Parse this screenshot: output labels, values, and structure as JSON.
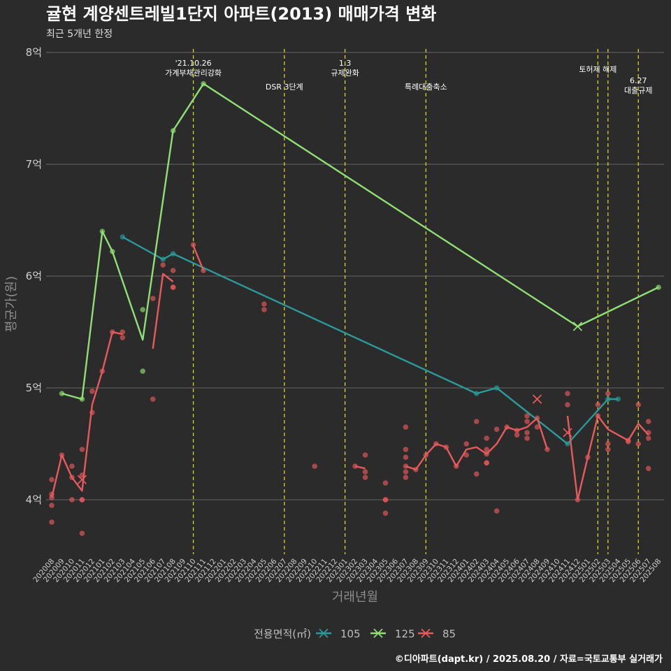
{
  "title": "귤현 계양센트레빌1단지 아파트(2013) 매매가격 변화",
  "subtitle": "최근 5개년 한정",
  "caption": "©디아파트(dapt.kr) / 2025.08.20 / 자료=국토교통부 실거래가",
  "legend": {
    "title": "전용면적(㎡)"
  },
  "colors": {
    "105": "#2a9a9a",
    "125": "#8fdf74",
    "85": "#e8595c",
    "event_line": "#d4d42a",
    "grid": "#6a6a6a"
  },
  "chart_data": {
    "type": "line",
    "xlabel": "거래년월",
    "ylabel": "평균가(원)",
    "ylim": [
      3.5,
      8.0
    ],
    "y_ticks": [
      {
        "v": 4,
        "label": "4억"
      },
      {
        "v": 5,
        "label": "5억"
      },
      {
        "v": 6,
        "label": "6억"
      },
      {
        "v": 7,
        "label": "7억"
      },
      {
        "v": 8,
        "label": "8억"
      }
    ],
    "categories": [
      "202008",
      "202009",
      "202010",
      "202011",
      "202012",
      "202101",
      "202102",
      "202103",
      "202104",
      "202105",
      "202106",
      "202107",
      "202108",
      "202109",
      "202110",
      "202111",
      "202112",
      "202201",
      "202202",
      "202203",
      "202204",
      "202205",
      "202206",
      "202207",
      "202208",
      "202209",
      "202210",
      "202211",
      "202212",
      "202301",
      "202302",
      "202303",
      "202304",
      "202305",
      "202306",
      "202307",
      "202308",
      "202309",
      "202310",
      "202311",
      "202312",
      "202401",
      "202402",
      "202403",
      "202404",
      "202405",
      "202406",
      "202407",
      "202408",
      "202409",
      "202410",
      "202411",
      "202412",
      "202501",
      "202502",
      "202503",
      "202504",
      "202505",
      "202506",
      "202507",
      "202508"
    ],
    "events": [
      {
        "month": "202110",
        "lines": [
          "'21.10.26",
          "가계부채관리강화"
        ],
        "row": 0
      },
      {
        "month": "202207",
        "lines": [
          "DSR 3단계"
        ],
        "row": 2
      },
      {
        "month": "202301",
        "lines": [
          "1.3",
          "규제완화"
        ],
        "row": 0
      },
      {
        "month": "202309",
        "lines": [
          "특례대출축소"
        ],
        "row": 2
      },
      {
        "month": "202502",
        "lines": [
          "토허제 해제"
        ],
        "row": 1
      },
      {
        "month": "202503",
        "lines": [],
        "row": 1
      },
      {
        "month": "202506",
        "lines": [
          "6.27",
          "대출규제"
        ],
        "row": 3
      }
    ],
    "series": [
      {
        "name": "105",
        "line": [
          [
            "202103",
            6.35
          ],
          [
            "202107",
            6.15
          ],
          [
            "202108",
            6.2
          ],
          [
            "202402",
            4.95
          ],
          [
            "202404",
            5.0
          ],
          [
            "202411",
            4.5
          ],
          [
            "202503",
            4.9
          ],
          [
            "202504",
            4.9
          ]
        ],
        "points": [
          [
            "202103",
            6.35
          ],
          [
            "202107",
            6.15
          ],
          [
            "202108",
            6.2
          ],
          [
            "202402",
            4.95
          ],
          [
            "202404",
            5.0
          ],
          [
            "202411",
            4.5
          ],
          [
            "202503",
            4.9
          ],
          [
            "202504",
            4.9
          ]
        ],
        "crosses": []
      },
      {
        "name": "125",
        "line": [
          [
            "202009",
            4.95
          ],
          [
            "202011",
            4.9
          ],
          [
            "202101",
            6.4
          ],
          [
            "202102",
            6.22
          ],
          [
            "202105",
            5.43
          ],
          [
            "202108",
            7.3
          ],
          [
            "202111",
            7.72
          ],
          [
            "202412",
            5.55
          ],
          [
            "202508",
            5.9
          ]
        ],
        "points": [
          [
            "202009",
            4.95
          ],
          [
            "202011",
            4.9
          ],
          [
            "202101",
            6.4
          ],
          [
            "202102",
            6.22
          ],
          [
            "202105",
            5.7
          ],
          [
            "202105",
            5.15
          ],
          [
            "202108",
            7.3
          ],
          [
            "202111",
            7.72
          ],
          [
            "202508",
            5.9
          ]
        ],
        "crosses": [
          [
            "202412",
            5.55
          ]
        ]
      },
      {
        "name": "85",
        "segments": [
          [
            [
              "202008",
              4.02
            ],
            [
              "202009",
              4.4
            ],
            [
              "202010",
              4.2
            ],
            [
              "202011",
              4.08
            ],
            [
              "202012",
              4.85
            ],
            [
              "202101",
              5.15
            ],
            [
              "202102",
              5.5
            ],
            [
              "202103",
              5.48
            ]
          ],
          [
            [
              "202106",
              5.35
            ],
            [
              "202107",
              6.02
            ],
            [
              "202108",
              5.95
            ]
          ],
          [
            [
              "202110",
              6.27
            ],
            [
              "202111",
              6.05
            ]
          ],
          [
            [
              "202302",
              4.3
            ],
            [
              "202303",
              4.28
            ]
          ],
          [
            [
              "202307",
              4.3
            ],
            [
              "202308",
              4.27
            ],
            [
              "202309",
              4.4
            ],
            [
              "202310",
              4.5
            ],
            [
              "202311",
              4.47
            ],
            [
              "202312",
              4.3
            ],
            [
              "202401",
              4.45
            ],
            [
              "202402",
              4.47
            ],
            [
              "202403",
              4.41
            ],
            [
              "202404",
              4.5
            ],
            [
              "202405",
              4.65
            ],
            [
              "202406",
              4.62
            ],
            [
              "202407",
              4.65
            ],
            [
              "202408",
              4.73
            ],
            [
              "202409",
              4.45
            ]
          ],
          [
            [
              "202411",
              4.75
            ],
            [
              "202412",
              4.0
            ],
            [
              "202501",
              4.38
            ],
            [
              "202502",
              4.75
            ],
            [
              "202503",
              4.63
            ],
            [
              "202505",
              4.53
            ],
            [
              "202506",
              4.68
            ],
            [
              "202507",
              4.58
            ]
          ]
        ],
        "points": [
          [
            "202008",
            4.18
          ],
          [
            "202008",
            4.05
          ],
          [
            "202008",
            4.02
          ],
          [
            "202008",
            3.95
          ],
          [
            "202008",
            3.8
          ],
          [
            "202009",
            4.4
          ],
          [
            "202010",
            4.3
          ],
          [
            "202010",
            4.2
          ],
          [
            "202010",
            4.0
          ],
          [
            "202011",
            4.45
          ],
          [
            "202011",
            4.22
          ],
          [
            "202011",
            4.0
          ],
          [
            "202011",
            4.0
          ],
          [
            "202011",
            3.7
          ],
          [
            "202012",
            4.97
          ],
          [
            "202012",
            4.78
          ],
          [
            "202101",
            5.15
          ],
          [
            "202102",
            5.5
          ],
          [
            "202103",
            5.5
          ],
          [
            "202103",
            5.45
          ],
          [
            "202106",
            5.8
          ],
          [
            "202106",
            4.9
          ],
          [
            "202107",
            6.1
          ],
          [
            "202108",
            6.05
          ],
          [
            "202108",
            5.9
          ],
          [
            "202108",
            5.9
          ],
          [
            "202110",
            6.28
          ],
          [
            "202111",
            6.05
          ],
          [
            "202205",
            5.75
          ],
          [
            "202205",
            5.7
          ],
          [
            "202210",
            4.3
          ],
          [
            "202302",
            4.3
          ],
          [
            "202303",
            4.4
          ],
          [
            "202303",
            4.25
          ],
          [
            "202303",
            4.2
          ],
          [
            "202305",
            4.15
          ],
          [
            "202305",
            4.0
          ],
          [
            "202305",
            4.0
          ],
          [
            "202305",
            3.88
          ],
          [
            "202307",
            4.65
          ],
          [
            "202307",
            4.45
          ],
          [
            "202307",
            4.38
          ],
          [
            "202307",
            4.3
          ],
          [
            "202307",
            4.25
          ],
          [
            "202307",
            4.2
          ],
          [
            "202308",
            4.27
          ],
          [
            "202309",
            4.4
          ],
          [
            "202310",
            4.5
          ],
          [
            "202311",
            4.47
          ],
          [
            "202312",
            4.3
          ],
          [
            "202401",
            4.5
          ],
          [
            "202401",
            4.4
          ],
          [
            "202402",
            4.7
          ],
          [
            "202402",
            4.23
          ],
          [
            "202403",
            4.55
          ],
          [
            "202403",
            4.45
          ],
          [
            "202403",
            4.41
          ],
          [
            "202403",
            4.33
          ],
          [
            "202403",
            4.33
          ],
          [
            "202404",
            4.63
          ],
          [
            "202404",
            3.9
          ],
          [
            "202405",
            4.65
          ],
          [
            "202406",
            4.62
          ],
          [
            "202406",
            4.58
          ],
          [
            "202407",
            4.75
          ],
          [
            "202407",
            4.7
          ],
          [
            "202407",
            4.6
          ],
          [
            "202407",
            4.55
          ],
          [
            "202408",
            4.73
          ],
          [
            "202408",
            4.65
          ],
          [
            "202409",
            4.45
          ],
          [
            "202411",
            4.95
          ],
          [
            "202411",
            4.85
          ],
          [
            "202412",
            4.0
          ],
          [
            "202501",
            4.38
          ],
          [
            "202502",
            4.85
          ],
          [
            "202502",
            4.75
          ],
          [
            "202503",
            4.95
          ],
          [
            "202503",
            4.5
          ],
          [
            "202503",
            4.45
          ],
          [
            "202505",
            4.53
          ],
          [
            "202505",
            4.52
          ],
          [
            "202506",
            4.85
          ],
          [
            "202506",
            4.5
          ],
          [
            "202507",
            4.7
          ],
          [
            "202507",
            4.6
          ],
          [
            "202507",
            4.55
          ],
          [
            "202507",
            4.28
          ]
        ],
        "crosses": [
          [
            "202011",
            4.18
          ],
          [
            "202408",
            4.9
          ],
          [
            "202411",
            4.6
          ]
        ]
      }
    ]
  }
}
